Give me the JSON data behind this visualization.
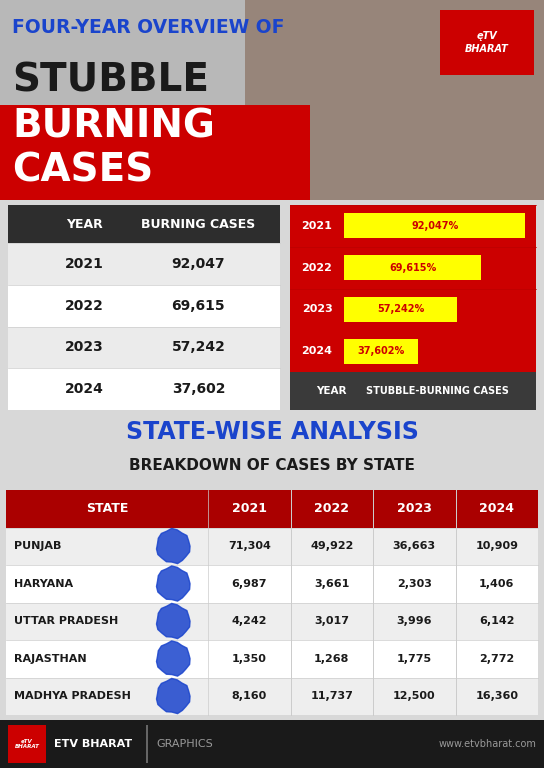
{
  "bg_color": "#d8d8d8",
  "header_bg": "#2d2d2d",
  "red_bg": "#cc0000",
  "dark_red": "#aa0000",
  "yellow": "#ffff00",
  "blue_text": "#1a44cc",
  "dark_text": "#1a1a1a",
  "white": "#ffffff",
  "title_line1": "FOUR-YEAR OVERVIEW OF",
  "title_line2": "STUBBLE",
  "title_burn": "BURNING",
  "title_cases": "CASES",
  "overview_years": [
    "2021",
    "2022",
    "2023",
    "2024"
  ],
  "overview_values": [
    92047,
    69615,
    57242,
    37602
  ],
  "overview_labels": [
    "92,047%",
    "69,615%",
    "57,242%",
    "37,602%"
  ],
  "overview_table_values": [
    "92,047",
    "69,615",
    "57,242",
    "37,602"
  ],
  "bar_max": 92047,
  "col_header_left": "YEAR",
  "col_header_right": "BURNING CASES",
  "bar_col_header_left": "YEAR",
  "bar_col_header_right": "STUBBLE-BURNING CASES",
  "states": [
    "PUNJAB",
    "HARYANA",
    "UTTAR PRADESH",
    "RAJASTHAN",
    "MADHYA PRADESH"
  ],
  "state_data_fmt": {
    "PUNJAB": [
      "71,304",
      "49,922",
      "36,663",
      "10,909"
    ],
    "HARYANA": [
      "6,987",
      "3,661",
      "2,303",
      "1,406"
    ],
    "UTTAR PRADESH": [
      "4,242",
      "3,017",
      "3,996",
      "6,142"
    ],
    "RAJASTHAN": [
      "1,350",
      "1,268",
      "1,775",
      "2,772"
    ],
    "MADHYA PRADESH": [
      "8,160",
      "11,737",
      "12,500",
      "16,360"
    ]
  },
  "years": [
    "2021",
    "2022",
    "2023",
    "2024"
  ],
  "sw_title": "STATE-WISE ANALYSIS",
  "sw_subtitle": "BREAKDOWN OF CASES BY STATE",
  "footer_brand": "ETV BHARAT",
  "footer_graphics": "GRAPHICS",
  "footer_website": "www.etvbharat.com",
  "fig_w": 5.44,
  "fig_h": 7.68,
  "dpi": 100
}
